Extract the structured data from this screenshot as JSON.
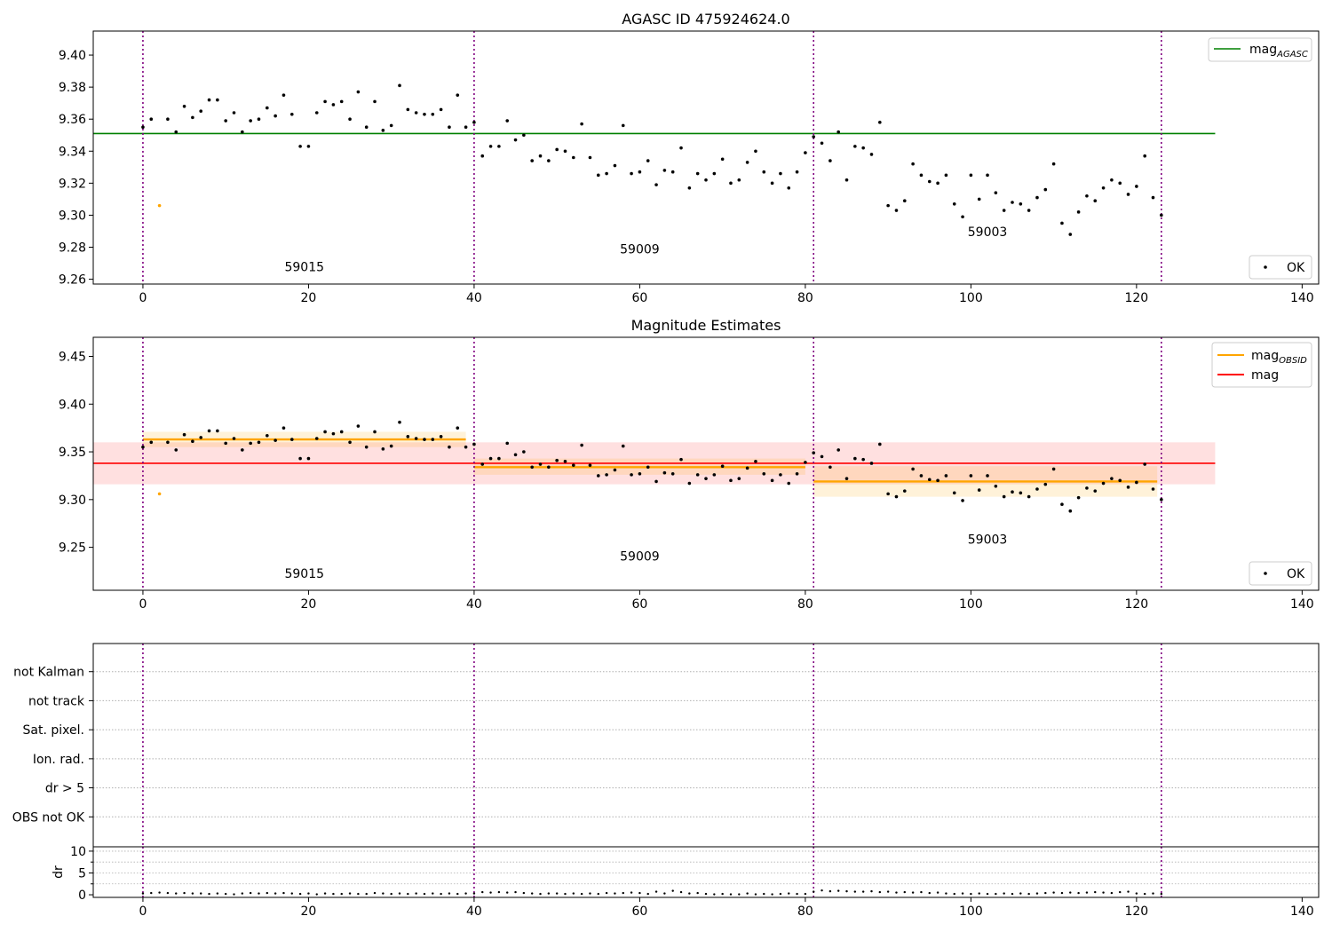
{
  "chart_data": [
    {
      "type": "scatter",
      "title": "AGASC ID 475924624.0",
      "xlim": [
        -6,
        142
      ],
      "ylim": [
        9.257,
        9.415
      ],
      "xticks": [
        0,
        20,
        40,
        60,
        80,
        100,
        120,
        140
      ],
      "yticks": [
        9.26,
        9.28,
        9.3,
        9.32,
        9.34,
        9.36,
        9.38,
        9.4
      ],
      "ytick_decimals": 2,
      "obsid_boundaries": [
        0,
        40,
        81,
        123
      ],
      "obsid_labels": [
        {
          "text": "59015",
          "x": 19.5,
          "y": 9.265
        },
        {
          "text": "59009",
          "x": 60,
          "y": 9.276
        },
        {
          "text": "59003",
          "x": 102,
          "y": 9.287
        }
      ],
      "hlines": [
        {
          "label": "mag",
          "sub": "AGASC",
          "y": 9.351,
          "x0": -6,
          "x1": 129.5,
          "color": "#008000"
        }
      ],
      "legend_top": {
        "position": "top-right",
        "entries": [
          {
            "label": "mag",
            "sub": "AGASC",
            "color": "#008000"
          }
        ]
      },
      "legend_bottom": {
        "position": "bottom-right",
        "label": "OK"
      },
      "colors": {
        "ok": "#000000",
        "flagged": "#ffa500"
      }
    },
    {
      "type": "scatter",
      "title": "Magnitude Estimates",
      "xlim": [
        -6,
        142
      ],
      "ylim": [
        9.205,
        9.47
      ],
      "xticks": [
        0,
        20,
        40,
        60,
        80,
        100,
        120,
        140
      ],
      "yticks": [
        9.25,
        9.3,
        9.35,
        9.4,
        9.45
      ],
      "ytick_decimals": 2,
      "obsid_boundaries": [
        0,
        40,
        81,
        123
      ],
      "obsid_labels": [
        {
          "text": "59015",
          "x": 19.5,
          "y": 9.218
        },
        {
          "text": "59009",
          "x": 60,
          "y": 9.236
        },
        {
          "text": "59003",
          "x": 102,
          "y": 9.254
        }
      ],
      "mag_obsid": [
        {
          "x0": 0,
          "x1": 39,
          "y": 9.363,
          "lo": 9.355,
          "hi": 9.371
        },
        {
          "x0": 40,
          "x1": 80,
          "y": 9.334,
          "lo": 9.326,
          "hi": 9.343
        },
        {
          "x0": 81,
          "x1": 122.5,
          "y": 9.319,
          "lo": 9.303,
          "hi": 9.335
        }
      ],
      "mag": {
        "x0": -6,
        "x1": 129.5,
        "y": 9.338,
        "lo": 9.316,
        "hi": 9.36
      },
      "legend_top": {
        "position": "top-right",
        "entries": [
          {
            "label": "mag",
            "sub": "OBSID",
            "color": "#ffa500"
          },
          {
            "label": "mag",
            "sub": "",
            "color": "#ff0000"
          }
        ]
      },
      "legend_bottom": {
        "position": "bottom-right",
        "label": "OK"
      },
      "colors": {
        "mag_obsid": "#ffa500",
        "mag": "#ff0000",
        "ok": "#000000",
        "flagged": "#ffa500"
      }
    },
    {
      "type": "scatter",
      "title": "",
      "categories": [
        "not Kalman",
        "not track",
        "Sat. pixel.",
        "Ion. rad.",
        "dr > 5",
        "OBS not OK"
      ],
      "flagged_points": [],
      "xlim": [
        -6,
        142
      ],
      "obsid_boundaries": [
        0,
        40,
        81,
        123
      ]
    },
    {
      "type": "scatter",
      "title": "",
      "ylabel": "dr",
      "xlim": [
        -6,
        142
      ],
      "ylim": [
        -0.6,
        11
      ],
      "xticks": [
        0,
        20,
        40,
        60,
        80,
        100,
        120,
        140
      ],
      "yticks": [
        0,
        5,
        10
      ],
      "ytick_decimals": 0,
      "obsid_boundaries": [
        0,
        40,
        81,
        123
      ]
    }
  ],
  "series": {
    "mag_obs": [
      [
        0,
        9.355
      ],
      [
        1,
        9.36
      ],
      [
        3,
        9.36
      ],
      [
        4,
        9.352
      ],
      [
        5,
        9.368
      ],
      [
        6,
        9.361
      ],
      [
        7,
        9.365
      ],
      [
        8,
        9.372
      ],
      [
        9,
        9.372
      ],
      [
        10,
        9.359
      ],
      [
        11,
        9.364
      ],
      [
        12,
        9.352
      ],
      [
        13,
        9.359
      ],
      [
        14,
        9.36
      ],
      [
        15,
        9.367
      ],
      [
        16,
        9.362
      ],
      [
        17,
        9.375
      ],
      [
        18,
        9.363
      ],
      [
        19,
        9.343
      ],
      [
        20,
        9.343
      ],
      [
        21,
        9.364
      ],
      [
        22,
        9.371
      ],
      [
        23,
        9.369
      ],
      [
        24,
        9.371
      ],
      [
        25,
        9.36
      ],
      [
        26,
        9.377
      ],
      [
        27,
        9.355
      ],
      [
        28,
        9.371
      ],
      [
        29,
        9.353
      ],
      [
        30,
        9.356
      ],
      [
        31,
        9.381
      ],
      [
        32,
        9.366
      ],
      [
        33,
        9.364
      ],
      [
        34,
        9.363
      ],
      [
        35,
        9.363
      ],
      [
        36,
        9.366
      ],
      [
        37,
        9.355
      ],
      [
        38,
        9.375
      ],
      [
        39,
        9.355
      ],
      [
        40,
        9.358
      ],
      [
        41,
        9.337
      ],
      [
        42,
        9.343
      ],
      [
        43,
        9.343
      ],
      [
        44,
        9.359
      ],
      [
        45,
        9.347
      ],
      [
        46,
        9.35
      ],
      [
        47,
        9.334
      ],
      [
        48,
        9.337
      ],
      [
        49,
        9.334
      ],
      [
        50,
        9.341
      ],
      [
        51,
        9.34
      ],
      [
        52,
        9.336
      ],
      [
        53,
        9.357
      ],
      [
        54,
        9.336
      ],
      [
        55,
        9.325
      ],
      [
        56,
        9.326
      ],
      [
        57,
        9.331
      ],
      [
        58,
        9.356
      ],
      [
        59,
        9.326
      ],
      [
        60,
        9.327
      ],
      [
        61,
        9.334
      ],
      [
        62,
        9.319
      ],
      [
        63,
        9.328
      ],
      [
        64,
        9.327
      ],
      [
        65,
        9.342
      ],
      [
        66,
        9.317
      ],
      [
        67,
        9.326
      ],
      [
        68,
        9.322
      ],
      [
        69,
        9.326
      ],
      [
        70,
        9.335
      ],
      [
        71,
        9.32
      ],
      [
        72,
        9.322
      ],
      [
        73,
        9.333
      ],
      [
        74,
        9.34
      ],
      [
        75,
        9.327
      ],
      [
        76,
        9.32
      ],
      [
        77,
        9.326
      ],
      [
        78,
        9.317
      ],
      [
        79,
        9.327
      ],
      [
        80,
        9.339
      ],
      [
        81,
        9.349
      ],
      [
        82,
        9.345
      ],
      [
        83,
        9.334
      ],
      [
        84,
        9.352
      ],
      [
        85,
        9.322
      ],
      [
        86,
        9.343
      ],
      [
        87,
        9.342
      ],
      [
        88,
        9.338
      ],
      [
        89,
        9.358
      ],
      [
        90,
        9.306
      ],
      [
        91,
        9.303
      ],
      [
        92,
        9.309
      ],
      [
        93,
        9.332
      ],
      [
        94,
        9.325
      ],
      [
        95,
        9.321
      ],
      [
        96,
        9.32
      ],
      [
        97,
        9.325
      ],
      [
        98,
        9.307
      ],
      [
        99,
        9.299
      ],
      [
        100,
        9.325
      ],
      [
        101,
        9.31
      ],
      [
        102,
        9.325
      ],
      [
        103,
        9.314
      ],
      [
        104,
        9.303
      ],
      [
        105,
        9.308
      ],
      [
        106,
        9.307
      ],
      [
        107,
        9.303
      ],
      [
        108,
        9.311
      ],
      [
        109,
        9.316
      ],
      [
        110,
        9.332
      ],
      [
        111,
        9.295
      ],
      [
        112,
        9.288
      ],
      [
        113,
        9.302
      ],
      [
        114,
        9.312
      ],
      [
        115,
        9.309
      ],
      [
        116,
        9.317
      ],
      [
        117,
        9.322
      ],
      [
        118,
        9.32
      ],
      [
        119,
        9.313
      ],
      [
        120,
        9.318
      ],
      [
        121,
        9.337
      ],
      [
        122,
        9.311
      ],
      [
        123,
        9.3
      ]
    ],
    "mag_flagged": [
      [
        2,
        9.306
      ]
    ],
    "dr": [
      [
        0,
        0.3
      ],
      [
        1,
        0.4
      ],
      [
        2,
        0.5
      ],
      [
        3,
        0.4
      ],
      [
        4,
        0.3
      ],
      [
        5,
        0.4
      ],
      [
        6,
        0.3
      ],
      [
        7,
        0.3
      ],
      [
        8,
        0.2
      ],
      [
        9,
        0.3
      ],
      [
        10,
        0.2
      ],
      [
        11,
        0.1
      ],
      [
        12,
        0.3
      ],
      [
        13,
        0.4
      ],
      [
        14,
        0.3
      ],
      [
        15,
        0.4
      ],
      [
        16,
        0.3
      ],
      [
        17,
        0.4
      ],
      [
        18,
        0.3
      ],
      [
        19,
        0.2
      ],
      [
        20,
        0.3
      ],
      [
        21,
        0.1
      ],
      [
        22,
        0.3
      ],
      [
        23,
        0.2
      ],
      [
        24,
        0.2
      ],
      [
        25,
        0.3
      ],
      [
        26,
        0.2
      ],
      [
        27,
        0.2
      ],
      [
        28,
        0.4
      ],
      [
        29,
        0.3
      ],
      [
        30,
        0.2
      ],
      [
        31,
        0.3
      ],
      [
        32,
        0.2
      ],
      [
        33,
        0.3
      ],
      [
        34,
        0.2
      ],
      [
        35,
        0.3
      ],
      [
        36,
        0.2
      ],
      [
        37,
        0.3
      ],
      [
        38,
        0.2
      ],
      [
        39,
        0.3
      ],
      [
        40,
        0.3
      ],
      [
        41,
        0.6
      ],
      [
        42,
        0.5
      ],
      [
        43,
        0.6
      ],
      [
        44,
        0.5
      ],
      [
        45,
        0.6
      ],
      [
        46,
        0.4
      ],
      [
        47,
        0.3
      ],
      [
        48,
        0.2
      ],
      [
        49,
        0.3
      ],
      [
        50,
        0.3
      ],
      [
        51,
        0.2
      ],
      [
        52,
        0.3
      ],
      [
        53,
        0.2
      ],
      [
        54,
        0.3
      ],
      [
        55,
        0.2
      ],
      [
        56,
        0.4
      ],
      [
        57,
        0.3
      ],
      [
        58,
        0.4
      ],
      [
        59,
        0.5
      ],
      [
        60,
        0.4
      ],
      [
        61,
        0.2
      ],
      [
        62,
        0.7
      ],
      [
        63,
        0.3
      ],
      [
        64,
        0.9
      ],
      [
        65,
        0.6
      ],
      [
        66,
        0.3
      ],
      [
        67,
        0.4
      ],
      [
        68,
        0.2
      ],
      [
        69,
        0.1
      ],
      [
        70,
        0.2
      ],
      [
        71,
        0.1
      ],
      [
        72,
        0.1
      ],
      [
        73,
        0.3
      ],
      [
        74,
        0.1
      ],
      [
        75,
        0.2
      ],
      [
        76,
        0.1
      ],
      [
        77,
        0.2
      ],
      [
        78,
        0.3
      ],
      [
        79,
        0.2
      ],
      [
        80,
        0.2
      ],
      [
        81,
        0.7
      ],
      [
        82,
        1.0
      ],
      [
        83,
        0.8
      ],
      [
        84,
        0.9
      ],
      [
        85,
        0.8
      ],
      [
        86,
        0.7
      ],
      [
        87,
        0.7
      ],
      [
        88,
        0.8
      ],
      [
        89,
        0.6
      ],
      [
        90,
        0.7
      ],
      [
        91,
        0.5
      ],
      [
        92,
        0.6
      ],
      [
        93,
        0.5
      ],
      [
        94,
        0.6
      ],
      [
        95,
        0.4
      ],
      [
        96,
        0.5
      ],
      [
        97,
        0.3
      ],
      [
        98,
        0.2
      ],
      [
        99,
        0.3
      ],
      [
        100,
        0.2
      ],
      [
        101,
        0.3
      ],
      [
        102,
        0.2
      ],
      [
        103,
        0.2
      ],
      [
        104,
        0.3
      ],
      [
        105,
        0.2
      ],
      [
        106,
        0.3
      ],
      [
        107,
        0.2
      ],
      [
        108,
        0.3
      ],
      [
        109,
        0.4
      ],
      [
        110,
        0.5
      ],
      [
        111,
        0.4
      ],
      [
        112,
        0.5
      ],
      [
        113,
        0.4
      ],
      [
        114,
        0.5
      ],
      [
        115,
        0.6
      ],
      [
        116,
        0.5
      ],
      [
        117,
        0.4
      ],
      [
        118,
        0.6
      ],
      [
        119,
        0.7
      ],
      [
        120,
        0.3
      ],
      [
        121,
        0.2
      ],
      [
        122,
        0.3
      ],
      [
        123,
        0.2
      ]
    ]
  }
}
